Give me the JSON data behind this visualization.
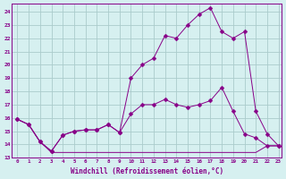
{
  "xlabel": "Windchill (Refroidissement éolien,°C)",
  "background_color": "#d6f0f0",
  "grid_color": "#aacccc",
  "line_color": "#880088",
  "xlim": [
    -0.5,
    23.3
  ],
  "ylim": [
    13.0,
    24.6
  ],
  "yticks": [
    13,
    14,
    15,
    16,
    17,
    18,
    19,
    20,
    21,
    22,
    23,
    24
  ],
  "xticks": [
    0,
    1,
    2,
    3,
    4,
    5,
    6,
    7,
    8,
    9,
    10,
    11,
    12,
    13,
    14,
    15,
    16,
    17,
    18,
    19,
    20,
    21,
    22,
    23
  ],
  "series1_x": [
    0,
    1,
    2,
    3,
    4,
    5,
    6,
    7,
    8,
    9,
    10,
    11,
    12,
    13,
    14,
    15,
    16,
    17,
    18,
    19,
    20,
    21,
    22,
    23
  ],
  "series1_y": [
    15.9,
    15.5,
    14.2,
    13.5,
    14.7,
    15.0,
    15.1,
    15.1,
    15.5,
    14.9,
    16.3,
    17.0,
    17.0,
    17.4,
    17.0,
    16.8,
    17.0,
    17.3,
    18.3,
    16.5,
    14.8,
    14.5,
    13.9,
    13.9
  ],
  "series2_x": [
    0,
    1,
    2,
    3,
    4,
    5,
    6,
    7,
    8,
    9,
    10,
    11,
    12,
    13,
    14,
    15,
    16,
    17,
    18,
    19,
    20,
    21,
    22,
    23
  ],
  "series2_y": [
    15.9,
    15.5,
    14.2,
    13.5,
    14.7,
    15.0,
    15.1,
    15.1,
    15.5,
    14.9,
    19.0,
    20.0,
    20.5,
    22.2,
    22.0,
    23.0,
    23.8,
    24.3,
    22.5,
    22.0,
    22.5,
    16.5,
    14.8,
    13.9
  ],
  "series3_x": [
    0,
    1,
    2,
    3,
    4,
    5,
    6,
    7,
    8,
    9,
    10,
    11,
    12,
    13,
    14,
    15,
    16,
    17,
    18,
    19,
    20,
    21,
    22,
    23
  ],
  "series3_y": [
    15.9,
    15.5,
    14.2,
    13.4,
    13.4,
    13.4,
    13.4,
    13.4,
    13.4,
    13.4,
    13.4,
    13.4,
    13.4,
    13.4,
    13.4,
    13.4,
    13.4,
    13.4,
    13.4,
    13.4,
    13.4,
    13.4,
    13.9,
    13.9
  ],
  "markersize": 2.5
}
